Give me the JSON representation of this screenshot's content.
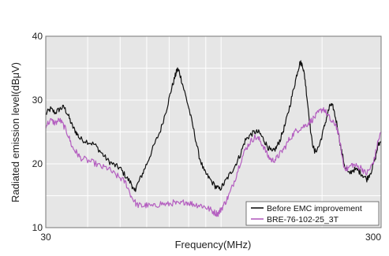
{
  "chart_data": {
    "type": "line",
    "title": "",
    "xlabel": "Frequency(MHz)",
    "ylabel": "Radiated emission level(dBμV)",
    "xscale": "log",
    "xlim": [
      30,
      300
    ],
    "ylim": [
      10,
      40
    ],
    "x_ticks": [
      "30",
      "300"
    ],
    "y_ticks": [
      "10",
      "20",
      "30",
      "40"
    ],
    "grid": true,
    "plot_background": "#e6e6e6",
    "legend_position": "bottom-right",
    "series": [
      {
        "name": "Before EMC improvement",
        "color": "#111111",
        "points": [
          [
            30,
            27.8
          ],
          [
            31,
            28.6
          ],
          [
            32,
            28.0
          ],
          [
            33,
            28.6
          ],
          [
            34,
            28.9
          ],
          [
            35,
            27.6
          ],
          [
            36,
            25.9
          ],
          [
            37,
            24.9
          ],
          [
            38,
            23.9
          ],
          [
            40,
            23.5
          ],
          [
            42,
            23.0
          ],
          [
            44,
            21.7
          ],
          [
            46,
            20.5
          ],
          [
            48,
            19.8
          ],
          [
            50,
            19.3
          ],
          [
            52,
            18.0
          ],
          [
            54,
            16.9
          ],
          [
            55,
            15.6
          ],
          [
            56,
            16.5
          ],
          [
            58,
            18.2
          ],
          [
            60,
            20.0
          ],
          [
            63,
            22.8
          ],
          [
            66,
            25.3
          ],
          [
            69,
            28.9
          ],
          [
            71,
            31.6
          ],
          [
            73,
            33.8
          ],
          [
            74,
            34.8
          ],
          [
            75,
            34.5
          ],
          [
            77,
            32.2
          ],
          [
            80,
            28.9
          ],
          [
            83,
            25.1
          ],
          [
            86,
            21.2
          ],
          [
            89,
            18.8
          ],
          [
            92,
            17.8
          ],
          [
            96,
            16.5
          ],
          [
            99,
            16.0
          ],
          [
            102,
            16.9
          ],
          [
            106,
            18.3
          ],
          [
            110,
            19.7
          ],
          [
            114,
            21.4
          ],
          [
            118,
            23.7
          ],
          [
            122,
            24.5
          ],
          [
            126,
            25.0
          ],
          [
            130,
            24.9
          ],
          [
            134,
            23.8
          ],
          [
            138,
            22.6
          ],
          [
            142,
            21.8
          ],
          [
            146,
            22.5
          ],
          [
            150,
            23.8
          ],
          [
            155,
            26.0
          ],
          [
            160,
            28.9
          ],
          [
            165,
            32.0
          ],
          [
            169,
            34.5
          ],
          [
            172,
            35.9
          ],
          [
            175,
            35.5
          ],
          [
            178,
            33.2
          ],
          [
            182,
            28.5
          ],
          [
            186,
            24.0
          ],
          [
            190,
            21.8
          ],
          [
            196,
            22.8
          ],
          [
            202,
            25.3
          ],
          [
            208,
            28.0
          ],
          [
            212,
            29.3
          ],
          [
            216,
            28.8
          ],
          [
            222,
            26.0
          ],
          [
            228,
            22.3
          ],
          [
            234,
            19.5
          ],
          [
            240,
            18.4
          ],
          [
            248,
            19.1
          ],
          [
            256,
            19.0
          ],
          [
            264,
            18.3
          ],
          [
            272,
            17.6
          ],
          [
            280,
            18.8
          ],
          [
            288,
            20.8
          ],
          [
            294,
            23.0
          ],
          [
            300,
            23.5
          ]
        ]
      },
      {
        "name": "BRE-76-102-25_3T",
        "color": "#b45fc0",
        "points": [
          [
            30,
            26.0
          ],
          [
            31,
            26.8
          ],
          [
            32,
            26.4
          ],
          [
            33,
            26.9
          ],
          [
            34,
            25.9
          ],
          [
            35,
            24.5
          ],
          [
            36,
            22.6
          ],
          [
            37,
            21.8
          ],
          [
            38,
            21.0
          ],
          [
            40,
            20.5
          ],
          [
            42,
            20.1
          ],
          [
            44,
            19.5
          ],
          [
            46,
            19.3
          ],
          [
            48,
            18.4
          ],
          [
            50,
            17.8
          ],
          [
            52,
            17.0
          ],
          [
            54,
            14.9
          ],
          [
            56,
            13.6
          ],
          [
            58,
            13.4
          ],
          [
            60,
            13.5
          ],
          [
            63,
            13.3
          ],
          [
            66,
            13.8
          ],
          [
            69,
            13.6
          ],
          [
            72,
            13.9
          ],
          [
            75,
            13.6
          ],
          [
            78,
            14.1
          ],
          [
            81,
            13.8
          ],
          [
            84,
            13.6
          ],
          [
            87,
            13.5
          ],
          [
            90,
            13.2
          ],
          [
            93,
            12.8
          ],
          [
            96,
            12.3
          ],
          [
            98,
            12.2
          ],
          [
            100,
            12.9
          ],
          [
            103,
            14.0
          ],
          [
            106,
            15.3
          ],
          [
            110,
            17.6
          ],
          [
            114,
            20.2
          ],
          [
            118,
            22.2
          ],
          [
            122,
            23.4
          ],
          [
            126,
            24.2
          ],
          [
            130,
            23.8
          ],
          [
            134,
            22.7
          ],
          [
            138,
            21.2
          ],
          [
            142,
            20.5
          ],
          [
            146,
            20.8
          ],
          [
            150,
            21.6
          ],
          [
            155,
            22.6
          ],
          [
            160,
            23.9
          ],
          [
            166,
            25.0
          ],
          [
            172,
            25.6
          ],
          [
            178,
            26.0
          ],
          [
            184,
            26.6
          ],
          [
            190,
            27.3
          ],
          [
            196,
            28.1
          ],
          [
            202,
            28.7
          ],
          [
            208,
            27.6
          ],
          [
            214,
            26.5
          ],
          [
            220,
            26.2
          ],
          [
            226,
            23.5
          ],
          [
            232,
            19.6
          ],
          [
            238,
            19.2
          ],
          [
            246,
            19.9
          ],
          [
            254,
            19.6
          ],
          [
            262,
            19.4
          ],
          [
            270,
            18.4
          ],
          [
            278,
            19.2
          ],
          [
            286,
            20.6
          ],
          [
            293,
            23.3
          ],
          [
            300,
            25.0
          ]
        ]
      }
    ]
  }
}
